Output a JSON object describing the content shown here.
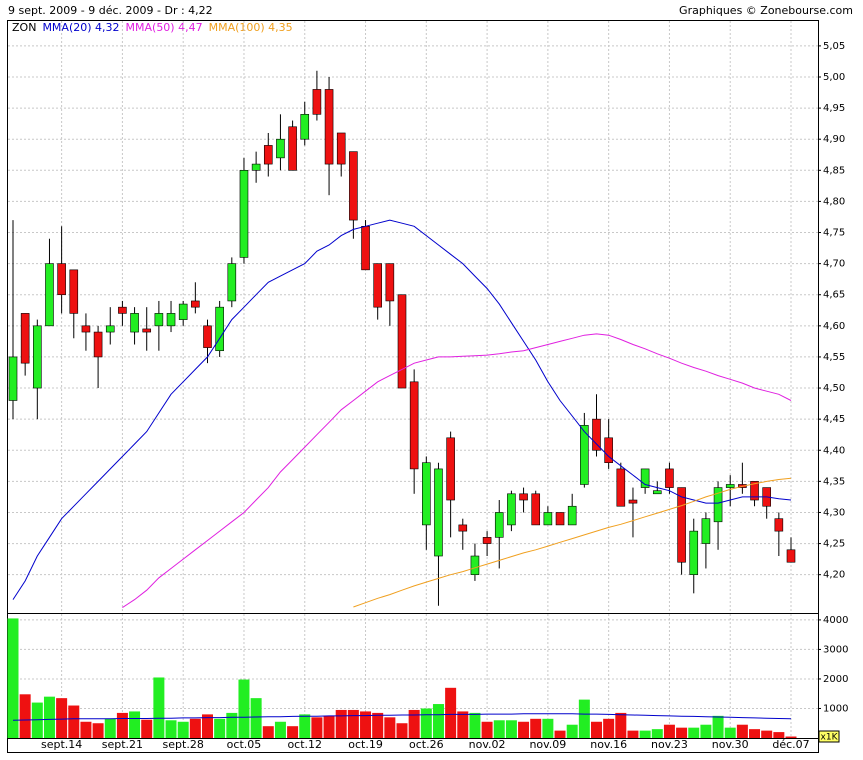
{
  "chart_data": {
    "type": "candlestick",
    "title": "9 sept. 2009 - 9 déc. 2009 - Dr : 4,22",
    "source": "Graphiques © Zonebourse.com",
    "symbol": "ZON",
    "categories": [
      null,
      null,
      null,
      null,
      "sept.14",
      null,
      null,
      null,
      null,
      "sept.21",
      null,
      null,
      null,
      null,
      "sept.28",
      null,
      null,
      null,
      null,
      "oct.05",
      null,
      null,
      null,
      null,
      "oct.12",
      null,
      null,
      null,
      null,
      "oct.19",
      null,
      null,
      null,
      null,
      "oct.26",
      null,
      null,
      null,
      null,
      "nov.02",
      null,
      null,
      null,
      null,
      "nov.09",
      null,
      null,
      null,
      null,
      "nov.16",
      null,
      null,
      null,
      null,
      "nov.23",
      null,
      null,
      null,
      null,
      "nov.30",
      null,
      null,
      null,
      null,
      "déc.07"
    ],
    "up_color": "#22ee22",
    "down_color": "#ee1111",
    "open": [
      4.48,
      4.62,
      4.5,
      4.6,
      4.7,
      4.69,
      4.6,
      4.59,
      4.59,
      4.63,
      4.59,
      4.595,
      4.6,
      4.6,
      4.61,
      4.64,
      4.6,
      4.56,
      4.64,
      4.71,
      4.85,
      4.89,
      4.87,
      4.92,
      4.9,
      4.98,
      4.98,
      4.91,
      4.88,
      4.76,
      4.7,
      4.7,
      4.65,
      4.51,
      4.28,
      4.23,
      4.42,
      4.28,
      4.2,
      4.26,
      4.26,
      4.28,
      4.33,
      4.33,
      4.28,
      4.3,
      4.28,
      4.345,
      4.45,
      4.42,
      4.37,
      4.32,
      4.34,
      4.33,
      4.37,
      4.34,
      4.2,
      4.25,
      4.285,
      4.34,
      4.345,
      4.35,
      4.34,
      4.29,
      4.24
    ],
    "high": [
      4.77,
      4.62,
      4.61,
      4.74,
      4.76,
      4.69,
      4.62,
      4.6,
      4.63,
      4.64,
      4.63,
      4.63,
      4.64,
      4.64,
      4.64,
      4.67,
      4.61,
      4.64,
      4.71,
      4.87,
      4.88,
      4.91,
      4.94,
      4.93,
      4.96,
      5.01,
      5.0,
      4.91,
      4.88,
      4.77,
      4.7,
      4.7,
      4.65,
      4.53,
      4.39,
      4.38,
      4.43,
      4.29,
      4.25,
      4.27,
      4.32,
      4.335,
      4.34,
      4.335,
      4.31,
      4.3,
      4.33,
      4.46,
      4.49,
      4.45,
      4.38,
      4.34,
      4.37,
      4.35,
      4.38,
      4.34,
      4.29,
      4.3,
      4.35,
      4.36,
      4.38,
      4.35,
      4.34,
      4.3,
      4.26
    ],
    "low": [
      4.45,
      4.52,
      4.45,
      4.6,
      4.62,
      4.58,
      4.56,
      4.5,
      4.57,
      4.6,
      4.57,
      4.56,
      4.56,
      4.59,
      4.6,
      4.62,
      4.54,
      4.55,
      4.63,
      4.7,
      4.83,
      4.84,
      4.85,
      4.85,
      4.89,
      4.93,
      4.81,
      4.84,
      4.74,
      4.69,
      4.61,
      4.6,
      4.5,
      4.33,
      4.24,
      4.15,
      4.26,
      4.24,
      4.19,
      4.23,
      4.21,
      4.27,
      4.3,
      4.28,
      4.28,
      4.28,
      4.28,
      4.34,
      4.39,
      4.37,
      4.31,
      4.26,
      4.33,
      4.33,
      4.33,
      4.2,
      4.17,
      4.21,
      4.24,
      4.31,
      4.33,
      4.31,
      4.29,
      4.23,
      4.22
    ],
    "close": [
      4.55,
      4.54,
      4.6,
      4.7,
      4.65,
      4.62,
      4.59,
      4.55,
      4.6,
      4.62,
      4.62,
      4.59,
      4.62,
      4.62,
      4.635,
      4.63,
      4.565,
      4.63,
      4.7,
      4.85,
      4.86,
      4.86,
      4.9,
      4.85,
      4.94,
      4.94,
      4.86,
      4.86,
      4.77,
      4.69,
      4.63,
      4.64,
      4.5,
      4.37,
      4.38,
      4.37,
      4.32,
      4.27,
      4.23,
      4.25,
      4.3,
      4.33,
      4.32,
      4.28,
      4.3,
      4.28,
      4.31,
      4.44,
      4.4,
      4.38,
      4.31,
      4.315,
      4.37,
      4.335,
      4.34,
      4.22,
      4.27,
      4.29,
      4.34,
      4.345,
      4.34,
      4.32,
      4.31,
      4.27,
      4.22
    ],
    "series": [
      {
        "name": "MMA(20) 4,32",
        "color": "#0000cc",
        "values": [
          4.16,
          4.19,
          4.23,
          4.26,
          4.29,
          4.31,
          4.33,
          4.35,
          4.37,
          4.39,
          4.41,
          4.43,
          4.46,
          4.49,
          4.51,
          4.53,
          4.55,
          4.58,
          4.61,
          4.63,
          4.65,
          4.67,
          4.68,
          4.69,
          4.7,
          4.72,
          4.73,
          4.745,
          4.755,
          4.76,
          4.765,
          4.77,
          4.765,
          4.76,
          4.745,
          4.73,
          4.715,
          4.7,
          4.68,
          4.66,
          4.635,
          4.605,
          4.575,
          4.545,
          4.51,
          4.48,
          4.455,
          4.43,
          4.41,
          4.39,
          4.375,
          4.36,
          4.345,
          4.34,
          4.335,
          4.325,
          4.32,
          4.315,
          4.315,
          4.32,
          4.325,
          4.325,
          4.325,
          4.322,
          4.32
        ]
      },
      {
        "name": "MMA(50) 4,47",
        "color": "#e020e0",
        "values": [
          null,
          null,
          null,
          null,
          null,
          null,
          null,
          null,
          null,
          4.147,
          4.16,
          4.175,
          4.195,
          4.21,
          4.225,
          4.24,
          4.255,
          4.27,
          4.285,
          4.3,
          4.32,
          4.34,
          4.365,
          4.385,
          4.405,
          4.425,
          4.445,
          4.465,
          4.48,
          4.495,
          4.51,
          4.52,
          4.53,
          4.54,
          4.545,
          4.55,
          4.55,
          4.551,
          4.552,
          4.553,
          4.555,
          4.558,
          4.56,
          4.565,
          4.57,
          4.575,
          4.58,
          4.585,
          4.587,
          4.585,
          4.578,
          4.57,
          4.563,
          4.555,
          4.548,
          4.54,
          4.533,
          4.527,
          4.52,
          4.514,
          4.508,
          4.5,
          4.495,
          4.49,
          4.48
        ]
      },
      {
        "name": "MMA(100) 4,35",
        "color": "#f0a020",
        "values": [
          null,
          null,
          null,
          null,
          null,
          null,
          null,
          null,
          null,
          null,
          null,
          null,
          null,
          null,
          null,
          null,
          null,
          null,
          null,
          null,
          null,
          null,
          null,
          null,
          null,
          null,
          null,
          null,
          4.148,
          4.155,
          4.162,
          4.168,
          4.175,
          4.182,
          4.188,
          4.194,
          4.2,
          4.205,
          4.211,
          4.217,
          4.223,
          4.229,
          4.235,
          4.24,
          4.246,
          4.252,
          4.258,
          4.264,
          4.27,
          4.276,
          4.281,
          4.287,
          4.293,
          4.299,
          4.305,
          4.311,
          4.318,
          4.325,
          4.331,
          4.337,
          4.342,
          4.346,
          4.35,
          4.353,
          4.355
        ]
      }
    ],
    "ylim": [
      4.14,
      5.09
    ],
    "yticks": [
      {
        "value": 4.2,
        "label": "4,20"
      },
      {
        "value": 4.25,
        "label": "4,25"
      },
      {
        "value": 4.3,
        "label": "4,30"
      },
      {
        "value": 4.35,
        "label": "4,35"
      },
      {
        "value": 4.4,
        "label": "4,40"
      },
      {
        "value": 4.45,
        "label": "4,45"
      },
      {
        "value": 4.5,
        "label": "4,50"
      },
      {
        "value": 4.55,
        "label": "4,55"
      },
      {
        "value": 4.6,
        "label": "4,60"
      },
      {
        "value": 4.65,
        "label": "4,65"
      },
      {
        "value": 4.7,
        "label": "4,70"
      },
      {
        "value": 4.75,
        "label": "4,75"
      },
      {
        "value": 4.8,
        "label": "4,80"
      },
      {
        "value": 4.85,
        "label": "4,85"
      },
      {
        "value": 4.9,
        "label": "4,90"
      },
      {
        "value": 4.95,
        "label": "4,95"
      },
      {
        "value": 5.0,
        "label": "5,00"
      },
      {
        "value": 5.05,
        "label": "5,05"
      }
    ],
    "grid": true,
    "volume": [
      4050,
      1480,
      1200,
      1400,
      1350,
      1100,
      550,
      500,
      650,
      850,
      900,
      620,
      2050,
      600,
      550,
      650,
      800,
      650,
      850,
      1980,
      1350,
      400,
      550,
      400,
      800,
      700,
      750,
      950,
      950,
      900,
      850,
      700,
      500,
      950,
      1000,
      1150,
      1700,
      900,
      850,
      550,
      600,
      600,
      550,
      650,
      650,
      250,
      450,
      1300,
      550,
      650,
      850,
      250,
      250,
      300,
      450,
      350,
      350,
      450,
      750,
      350,
      450,
      300,
      250,
      200,
      50
    ],
    "volume_average": {
      "color": "#0000cc",
      "values": [
        600,
        610,
        620,
        630,
        640,
        650,
        650,
        650,
        650,
        660,
        660,
        660,
        670,
        670,
        680,
        680,
        690,
        690,
        700,
        700,
        710,
        720,
        720,
        730,
        740,
        740,
        750,
        750,
        760,
        760,
        770,
        770,
        780,
        780,
        790,
        790,
        800,
        800,
        800,
        810,
        810,
        810,
        820,
        820,
        820,
        820,
        820,
        810,
        810,
        800,
        790,
        780,
        770,
        760,
        750,
        740,
        730,
        720,
        710,
        700,
        690,
        680,
        670,
        660,
        650
      ]
    },
    "volume_ylim": [
      0,
      4200
    ],
    "volume_yticks": [
      1000,
      2000,
      3000,
      4000
    ],
    "volume_unit": "x1K"
  }
}
